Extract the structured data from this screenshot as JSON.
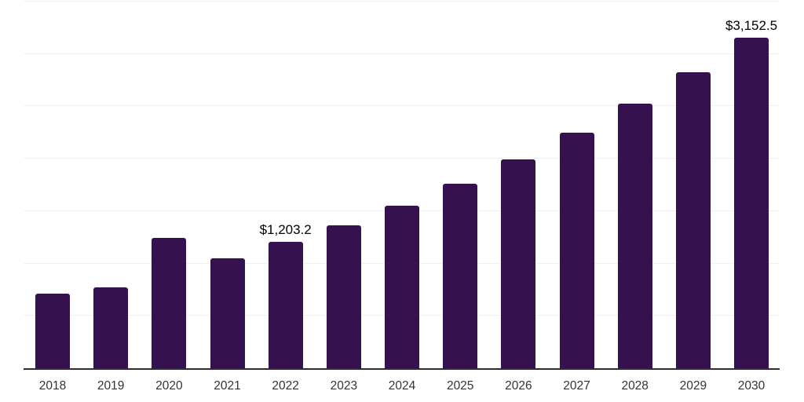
{
  "chart_data": {
    "type": "bar",
    "title": "",
    "xlabel": "",
    "ylabel": "",
    "categories": [
      "2018",
      "2019",
      "2020",
      "2021",
      "2022",
      "2023",
      "2024",
      "2025",
      "2026",
      "2027",
      "2028",
      "2029",
      "2030"
    ],
    "values": [
      710,
      775,
      1245,
      1050,
      1203.2,
      1365,
      1550,
      1760,
      1995,
      2250,
      2525,
      2825,
      3152.5
    ],
    "data_labels": {
      "2022": "$1,203.2",
      "2030": "$3,152.5"
    },
    "ylim": [
      0,
      3500
    ],
    "gridline_step": 500,
    "grid": "horizontal",
    "legend": "none",
    "y_axis_labels": "none",
    "colors": {
      "bar": "#36114F",
      "axis_line": "#2e2e2e",
      "gridline": "#f0f0f0",
      "tick_label": "#333333",
      "data_label": "#000000",
      "background": "#ffffff"
    }
  }
}
